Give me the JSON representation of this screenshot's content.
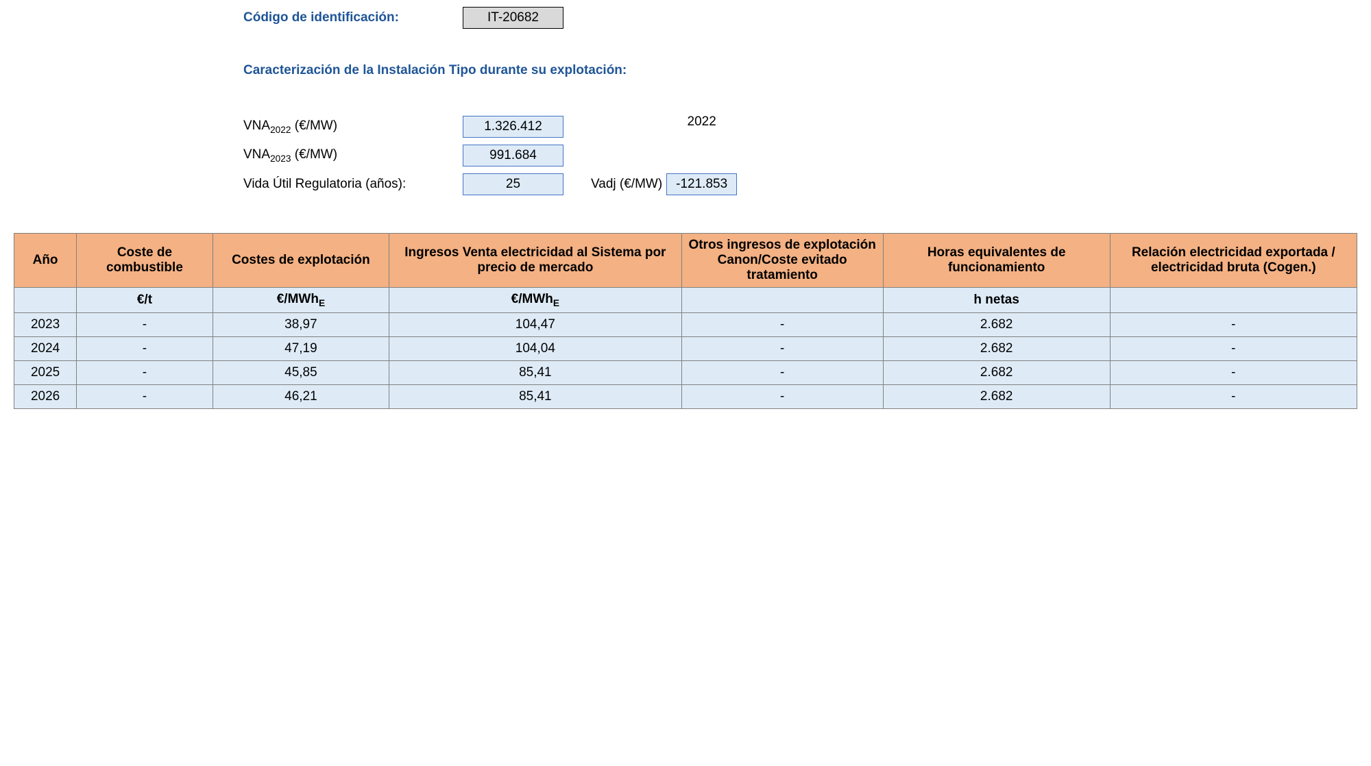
{
  "header": {
    "id_label": "Código de identificación:",
    "id_value": "IT-20682",
    "section_title": "Caracterización de la Instalación Tipo durante su explotación:"
  },
  "params": {
    "vna2022_label_pre": "VNA",
    "vna2022_sub": "2022",
    "vna2022_label_post": " (€/MW)",
    "vna2022_value": "1.326.412",
    "vna2023_label_pre": "VNA",
    "vna2023_sub": "2023",
    "vna2023_label_post": " (€/MW)",
    "vna2023_value": "991.684",
    "vida_label": "Vida Útil Regulatoria (años):",
    "vida_value": "25",
    "vadj_year": "2022",
    "vadj_label": "Vadj (€/MW)",
    "vadj_value": "-121.853"
  },
  "table": {
    "headers": {
      "year": "Año",
      "fuel": "Coste de combustible",
      "opex": "Costes de explotación",
      "sales": "Ingresos Venta electricidad al Sistema por precio de mercado",
      "other": "Otros ingresos de explotación Canon/Coste evitado tratamiento",
      "hours": "Horas equivalentes de funcionamiento",
      "ratio": "Relación electricidad exportada / electricidad bruta (Cogen.)"
    },
    "units": {
      "year": "",
      "fuel": "€/t",
      "opex_pre": "€/MWh",
      "opex_sub": "E",
      "sales_pre": "€/MWh",
      "sales_sub": "E",
      "other": "",
      "hours": "h netas",
      "ratio": ""
    },
    "rows": [
      {
        "year": "2023",
        "fuel": "-",
        "opex": "38,97",
        "sales": "104,47",
        "other": "-",
        "hours": "2.682",
        "ratio": "-"
      },
      {
        "year": "2024",
        "fuel": "-",
        "opex": "47,19",
        "sales": "104,04",
        "other": "-",
        "hours": "2.682",
        "ratio": "-"
      },
      {
        "year": "2025",
        "fuel": "-",
        "opex": "45,85",
        "sales": "85,41",
        "other": "-",
        "hours": "2.682",
        "ratio": "-"
      },
      {
        "year": "2026",
        "fuel": "-",
        "opex": "46,21",
        "sales": "85,41",
        "other": "-",
        "hours": "2.682",
        "ratio": "-"
      }
    ],
    "styling": {
      "header_bg": "#f4b183",
      "body_bg": "#deebf7",
      "border_color": "#808080",
      "label_color": "#1f5597"
    }
  }
}
